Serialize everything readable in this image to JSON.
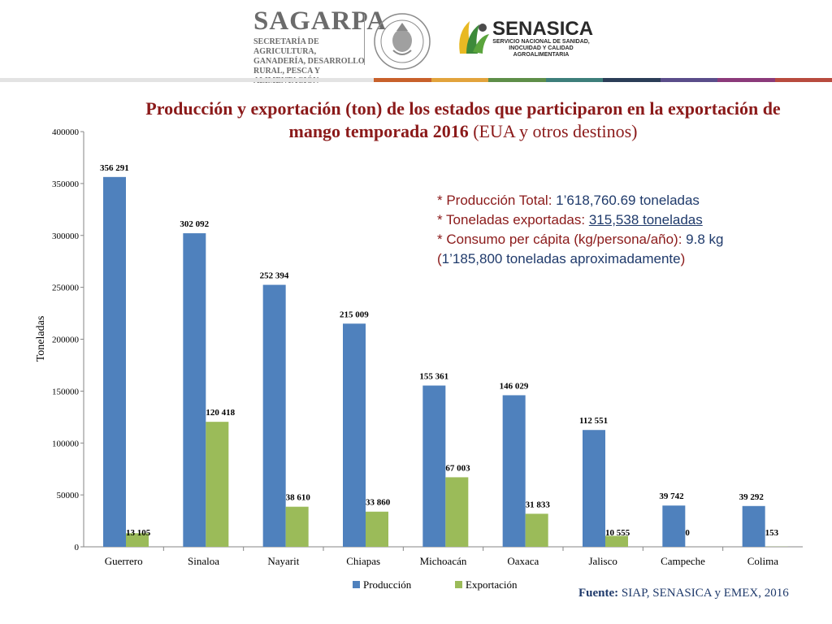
{
  "header": {
    "sagarpa_name": "SAGARPA",
    "sagarpa_sub": "SECRETARÍA DE AGRICULTURA, GANADERÍA, DESARROLLO RURAL, PESCA Y ALIMENTACIÓN",
    "seal_text": "ESTADOS UNIDOS MEXICANOS",
    "senasica_name": "SENASICA",
    "senasica_sub": "SERVICIO NACIONAL DE SANIDAD, INOCUIDAD Y CALIDAD AGROALIMENTARIA",
    "bar_colors": [
      "#c8612b",
      "#e2a33c",
      "#5e8e49",
      "#3d7e7a",
      "#2b3d57",
      "#5a4d8a",
      "#8b3a7a",
      "#b84b3e"
    ]
  },
  "title": {
    "bold": "Producción y exportación (ton) de los estados que participaron en la exportación de mango temporada 2016 ",
    "normal": "(EUA y otros destinos)"
  },
  "notes": {
    "line1_label": "* Producción Total: ",
    "line1_value": "1’618,760.69 toneladas",
    "line2_label": "* Toneladas exportadas: ",
    "line2_value": "315,538 toneladas",
    "line3_label": "* Consumo per cápita (kg/persona/año): ",
    "line3_value": "9.8 kg",
    "line4_open": "(",
    "line4_value": "1’185,800 toneladas aproximadamente",
    "line4_close": ")"
  },
  "source": {
    "label": "Fuente:",
    "text": " SIAP, SENASICA y EMEX, 2016"
  },
  "chart_data": {
    "type": "bar",
    "categories": [
      "Guerrero",
      "Sinaloa",
      "Nayarit",
      "Chiapas",
      "Michoacán",
      "Oaxaca",
      "Jalisco",
      "Campeche",
      "Colima"
    ],
    "series": [
      {
        "name": "Producción",
        "color": "#4f81bd",
        "values": [
          356291,
          302092,
          252394,
          215009,
          155361,
          146029,
          112551,
          39742,
          39292
        ],
        "labels": [
          "356 291",
          "302 092",
          "252 394",
          "215 009",
          "155 361",
          "146 029",
          "112 551",
          "39 742",
          "39 292"
        ]
      },
      {
        "name": "Exportación",
        "color": "#9bbb59",
        "values": [
          13105,
          120418,
          38610,
          33860,
          67003,
          31833,
          10555,
          0,
          153
        ],
        "labels": [
          "13 105",
          "120 418",
          "38 610",
          "33 860",
          "67 003",
          "31 833",
          "10 555",
          "0",
          "153"
        ]
      }
    ],
    "yticks": [
      "0",
      "50000",
      "100000",
      "150000",
      "200000",
      "250000",
      "300000",
      "350000",
      "400000"
    ],
    "ylim": [
      0,
      400000
    ],
    "ylabel": "Toneladas",
    "xlabel": "",
    "grid": false,
    "legend_position": "bottom"
  }
}
